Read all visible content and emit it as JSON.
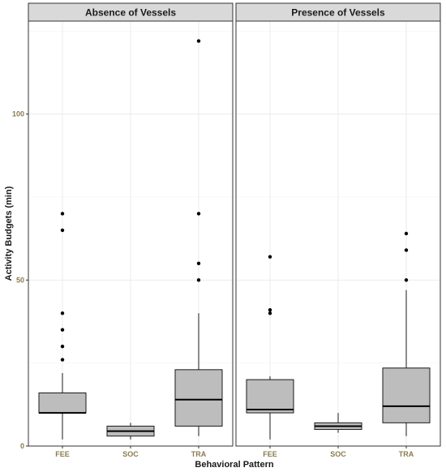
{
  "chart_data": {
    "type": "boxplot",
    "xlabel": "Behavioral Pattern",
    "ylabel": "Activity Budgets (min)",
    "categories": [
      "FEE",
      "SOC",
      "TRA"
    ],
    "ylim": [
      0,
      128
    ],
    "y_ticks": [
      0,
      50,
      100
    ],
    "grid": true,
    "box_color": "#bdbdbd",
    "panels": [
      {
        "title": "Absence of Vessels",
        "boxes": [
          {
            "category": "FEE",
            "whisker_low": 2,
            "q1": 10,
            "median": 10,
            "q3": 16,
            "whisker_high": 22,
            "outliers": [
              26,
              30,
              35,
              40,
              65,
              70
            ]
          },
          {
            "category": "SOC",
            "whisker_low": 2,
            "q1": 3,
            "median": 4.5,
            "q3": 6,
            "whisker_high": 7,
            "outliers": []
          },
          {
            "category": "TRA",
            "whisker_low": 3,
            "q1": 6,
            "median": 14,
            "q3": 23,
            "whisker_high": 40,
            "outliers": [
              50,
              55,
              70,
              122
            ]
          }
        ]
      },
      {
        "title": "Presence of Vessels",
        "boxes": [
          {
            "category": "FEE",
            "whisker_low": 2,
            "q1": 10,
            "median": 11,
            "q3": 20,
            "whisker_high": 21,
            "outliers": [
              40,
              41,
              57
            ]
          },
          {
            "category": "SOC",
            "whisker_low": 4,
            "q1": 5,
            "median": 6,
            "q3": 7,
            "whisker_high": 10,
            "outliers": []
          },
          {
            "category": "TRA",
            "whisker_low": 3,
            "q1": 7,
            "median": 12,
            "q3": 23.5,
            "whisker_high": 47,
            "outliers": [
              50,
              59,
              64
            ]
          }
        ]
      }
    ]
  }
}
